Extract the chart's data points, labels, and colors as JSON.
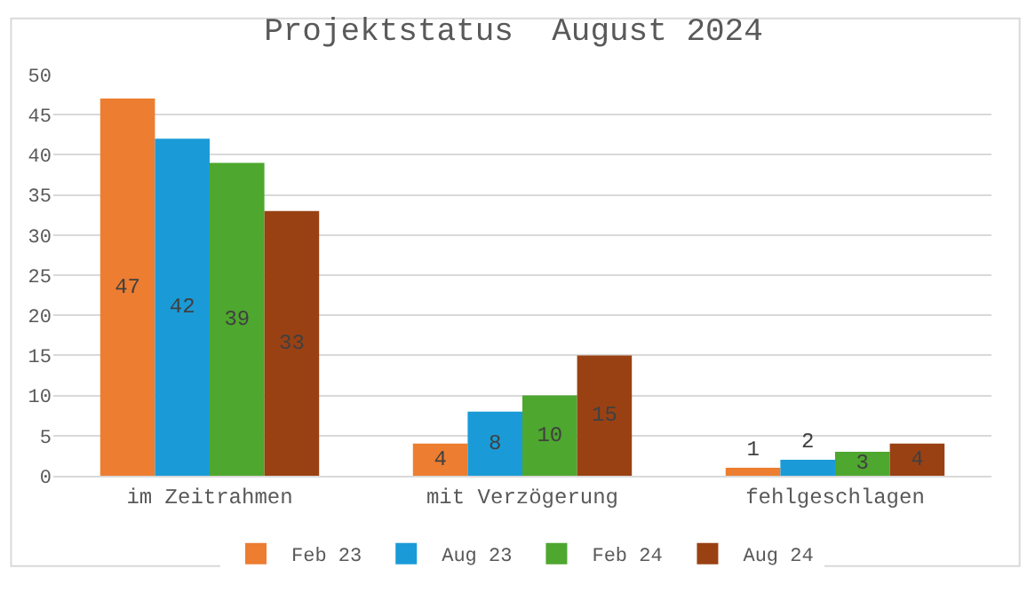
{
  "chart_data": {
    "type": "bar",
    "title": "Projektstatus  August 2024",
    "categories": [
      "im Zeitrahmen",
      "mit Verzögerung",
      "fehlgeschlagen"
    ],
    "series": [
      {
        "name": "Feb 23",
        "color": "#ed7d31",
        "values": [
          47,
          4,
          1
        ]
      },
      {
        "name": "Aug 23",
        "color": "#1a9bd7",
        "values": [
          42,
          8,
          2
        ]
      },
      {
        "name": "Feb 24",
        "color": "#4ea72e",
        "values": [
          39,
          10,
          3
        ]
      },
      {
        "name": "Aug 24",
        "color": "#9a4113",
        "values": [
          33,
          15,
          4
        ]
      }
    ],
    "ylim": [
      0,
      50
    ],
    "yticks": [
      0,
      5,
      10,
      15,
      20,
      25,
      30,
      35,
      40,
      45,
      50
    ],
    "grid": "y",
    "legend": "bottom",
    "data_labels": true
  }
}
